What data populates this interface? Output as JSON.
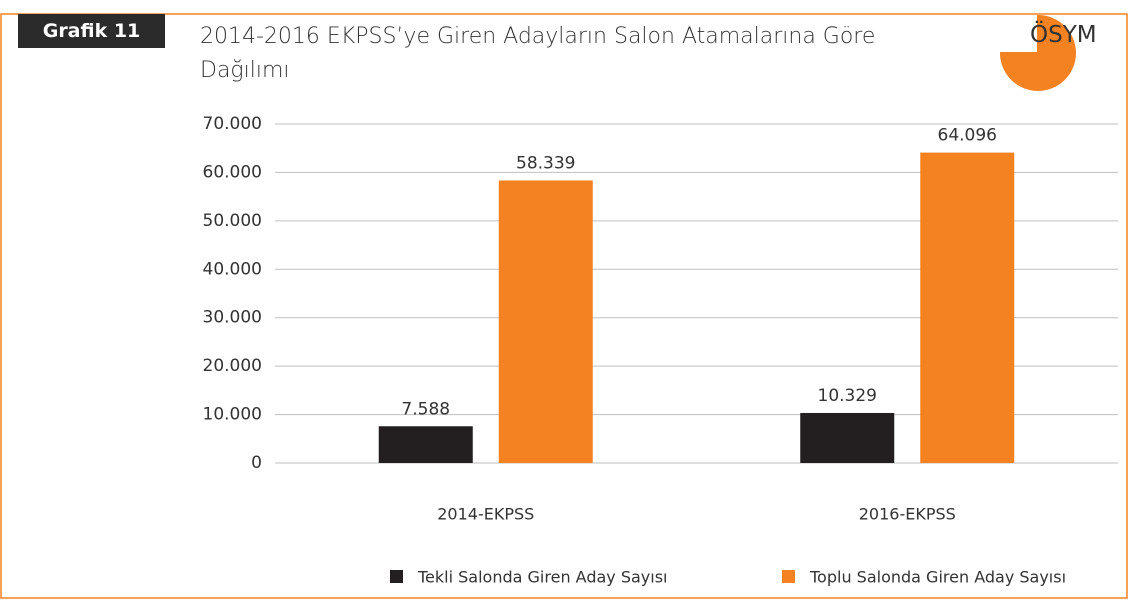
{
  "chart_data": {
    "type": "bar",
    "label": "Grafik 11",
    "logo": "ÖSYM",
    "title": "2014-2016 EKPSS’ye Giren Adayların Salon Atamalarına Göre Dağılımı",
    "categories": [
      "2014-EKPSS",
      "2016-EKPSS"
    ],
    "series": [
      {
        "name": "Tekli Salonda Giren Aday Sayısı",
        "color": "#231f20",
        "values": [
          7588,
          10329
        ],
        "value_labels": [
          "7.588",
          "10.329"
        ]
      },
      {
        "name": "Toplu Salonda Giren Aday Sayısı",
        "color": "#f58220",
        "values": [
          58339,
          64096
        ],
        "value_labels": [
          "58.339",
          "64.096"
        ]
      }
    ],
    "ylim": [
      0,
      70000
    ],
    "yticks": [
      0,
      {
        "value": 10000,
        "label": "10.000"
      },
      {
        "value": 20000,
        "label": "20.000"
      },
      {
        "value": 30000,
        "label": "30.000"
      },
      {
        "value": 40000,
        "label": "40.000"
      },
      {
        "value": 50000,
        "label": "50.000"
      },
      {
        "value": 60000,
        "label": "60.000"
      },
      {
        "value": 70000,
        "label": "70.000"
      }
    ],
    "grid": true,
    "legend": "bottom"
  }
}
